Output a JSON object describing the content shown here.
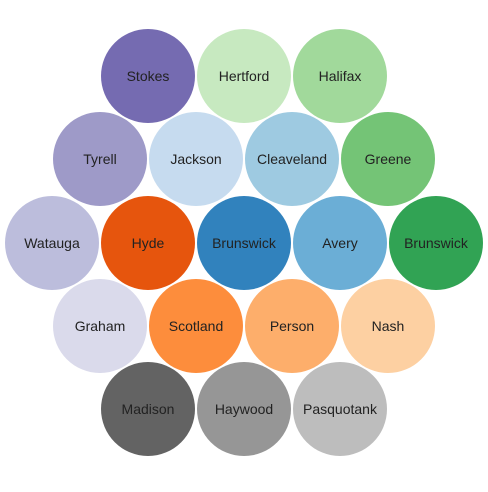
{
  "bubbles": [
    {
      "label": "Stokes",
      "color": "#756bb1",
      "text_color": "#222222"
    },
    {
      "label": "Hertford",
      "color": "#c7e9c0",
      "text_color": "#222222"
    },
    {
      "label": "Halifax",
      "color": "#a1d99b",
      "text_color": "#222222"
    },
    {
      "label": "Tyrell",
      "color": "#9e9ac8",
      "text_color": "#222222"
    },
    {
      "label": "Jackson",
      "color": "#c6dbef",
      "text_color": "#222222"
    },
    {
      "label": "Cleaveland",
      "color": "#9ecae1",
      "text_color": "#222222"
    },
    {
      "label": "Greene",
      "color": "#74c476",
      "text_color": "#222222"
    },
    {
      "label": "Watauga",
      "color": "#bcbddc",
      "text_color": "#222222"
    },
    {
      "label": "Hyde",
      "color": "#e6550d",
      "text_color": "#222222"
    },
    {
      "label": "Brunswick",
      "color": "#3182bd",
      "text_color": "#222222"
    },
    {
      "label": "Avery",
      "color": "#6baed6",
      "text_color": "#222222"
    },
    {
      "label": "Brunswick",
      "color": "#31a354",
      "text_color": "#222222"
    },
    {
      "label": "Graham",
      "color": "#dadaeb",
      "text_color": "#222222"
    },
    {
      "label": "Scotland",
      "color": "#fd8d3c",
      "text_color": "#222222"
    },
    {
      "label": "Person",
      "color": "#fdae6b",
      "text_color": "#222222"
    },
    {
      "label": "Nash",
      "color": "#fdd0a2",
      "text_color": "#222222"
    },
    {
      "label": "Madison",
      "color": "#636363",
      "text_color": "#222222"
    },
    {
      "label": "Haywood",
      "color": "#969696",
      "text_color": "#222222"
    },
    {
      "label": "Pasquotank",
      "color": "#bdbdbd",
      "text_color": "#222222"
    }
  ]
}
